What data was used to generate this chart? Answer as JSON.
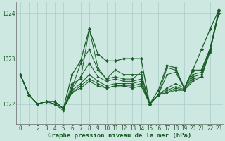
{
  "background_color": "#cce8e0",
  "plot_bg_color": "#cce8e0",
  "grid_color": "#aacccc",
  "line_color": "#1a5c28",
  "marker_color": "#1a5c28",
  "xlabel": "Graphe pression niveau de la mer (hPa)",
  "xlabel_fontsize": 6.5,
  "tick_fontsize": 5.5,
  "ylim": [
    1021.55,
    1024.25
  ],
  "xlim": [
    -0.5,
    23.5
  ],
  "yticks": [
    1022,
    1023,
    1024
  ],
  "xticks": [
    0,
    1,
    2,
    3,
    4,
    5,
    6,
    7,
    8,
    9,
    10,
    11,
    12,
    13,
    14,
    15,
    16,
    17,
    18,
    19,
    20,
    21,
    22,
    23
  ],
  "series": [
    [
      1022.65,
      1022.2,
      1022.0,
      1022.05,
      1022.05,
      1021.9,
      1022.25,
      1022.35,
      1022.5,
      1022.4,
      1022.35,
      1022.4,
      1022.4,
      1022.35,
      1022.4,
      1022.0,
      1022.2,
      1022.25,
      1022.3,
      1022.3,
      1022.5,
      1022.6,
      1023.15,
      1024.0
    ],
    [
      1022.65,
      1022.2,
      1022.0,
      1022.05,
      1022.05,
      1021.9,
      1022.25,
      1022.4,
      1022.55,
      1022.45,
      1022.35,
      1022.4,
      1022.4,
      1022.4,
      1022.45,
      1022.0,
      1022.2,
      1022.25,
      1022.35,
      1022.3,
      1022.55,
      1022.6,
      1023.18,
      1024.0
    ],
    [
      1022.65,
      1022.2,
      1022.0,
      1022.05,
      1022.05,
      1021.9,
      1022.3,
      1022.45,
      1022.65,
      1022.5,
      1022.4,
      1022.45,
      1022.45,
      1022.45,
      1022.5,
      1022.0,
      1022.2,
      1022.3,
      1022.38,
      1022.32,
      1022.6,
      1022.65,
      1023.2,
      1024.0
    ],
    [
      1022.65,
      1022.2,
      1022.0,
      1022.05,
      1022.05,
      1021.9,
      1022.35,
      1022.6,
      1022.9,
      1022.6,
      1022.5,
      1022.55,
      1022.5,
      1022.5,
      1022.55,
      1022.0,
      1022.2,
      1022.35,
      1022.45,
      1022.35,
      1022.65,
      1022.7,
      1023.22,
      1024.0
    ],
    [
      1022.65,
      1022.2,
      1022.0,
      1022.05,
      1022.0,
      1021.9,
      1022.35,
      1022.9,
      1023.2,
      1022.75,
      1022.55,
      1022.75,
      1022.65,
      1022.65,
      1022.65,
      1022.0,
      1022.2,
      1022.65,
      1022.7,
      1022.35,
      1022.72,
      1022.75,
      1023.22,
      1024.05
    ],
    [
      1022.65,
      1022.2,
      1022.0,
      1022.05,
      1022.0,
      1021.85,
      1022.45,
      1022.55,
      1023.65,
      1022.8,
      1022.55,
      1022.6,
      1022.55,
      1022.55,
      1022.7,
      1021.98,
      1022.2,
      1022.8,
      1022.75,
      1022.35,
      1022.75,
      1022.75,
      1023.22,
      1024.07
    ]
  ],
  "trend_series": [
    1022.65,
    1022.2,
    1022.0,
    1022.05,
    1022.05,
    1021.9,
    1022.65,
    1022.95,
    1023.65,
    1023.1,
    1022.95,
    1022.95,
    1023.0,
    1023.0,
    1023.0,
    1022.0,
    1022.3,
    1022.85,
    1022.8,
    1022.35,
    1022.75,
    1023.2,
    1023.65,
    1024.07
  ]
}
